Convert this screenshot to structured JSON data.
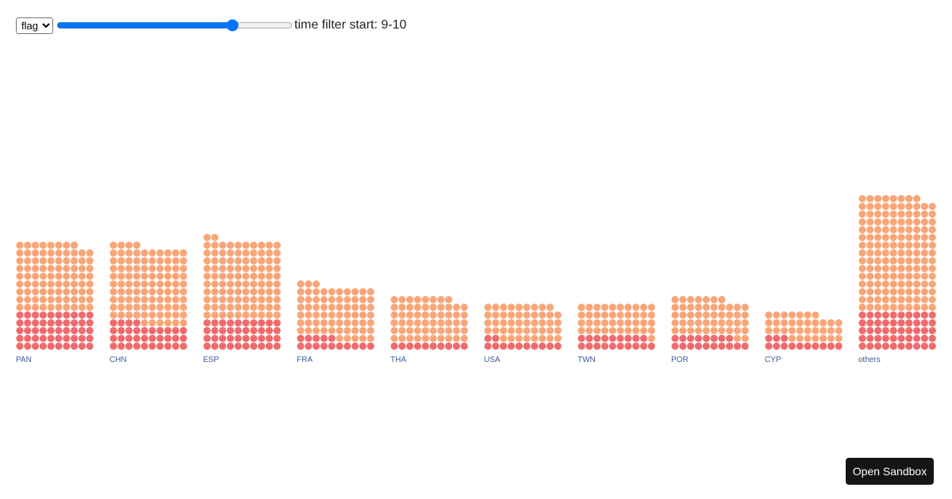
{
  "controls": {
    "field_select": {
      "selected": "flag",
      "options": [
        "flag"
      ]
    },
    "time_slider": {
      "value": 0.76
    },
    "filter_label_prefix": "time filter start: ",
    "filter_value": "9-10"
  },
  "chart_data": {
    "type": "waffle",
    "categories": [
      "PAN",
      "CHN",
      "ESP",
      "FRA",
      "THA",
      "USA",
      "TWN",
      "POR",
      "CYP",
      "others"
    ],
    "series": [
      {
        "values": [
          50,
          34,
          40,
          15,
          10,
          12,
          19,
          18,
          13,
          50
        ]
      },
      {
        "values": [
          88,
          100,
          102,
          68,
          58,
          47,
          41,
          49,
          34,
          148
        ]
      }
    ],
    "colors": [
      "#f06b6d",
      "#f8a678"
    ],
    "grid_columns": 10,
    "xlabel": "",
    "ylabel": ""
  },
  "sandbox_button": {
    "label": "Open Sandbox"
  }
}
